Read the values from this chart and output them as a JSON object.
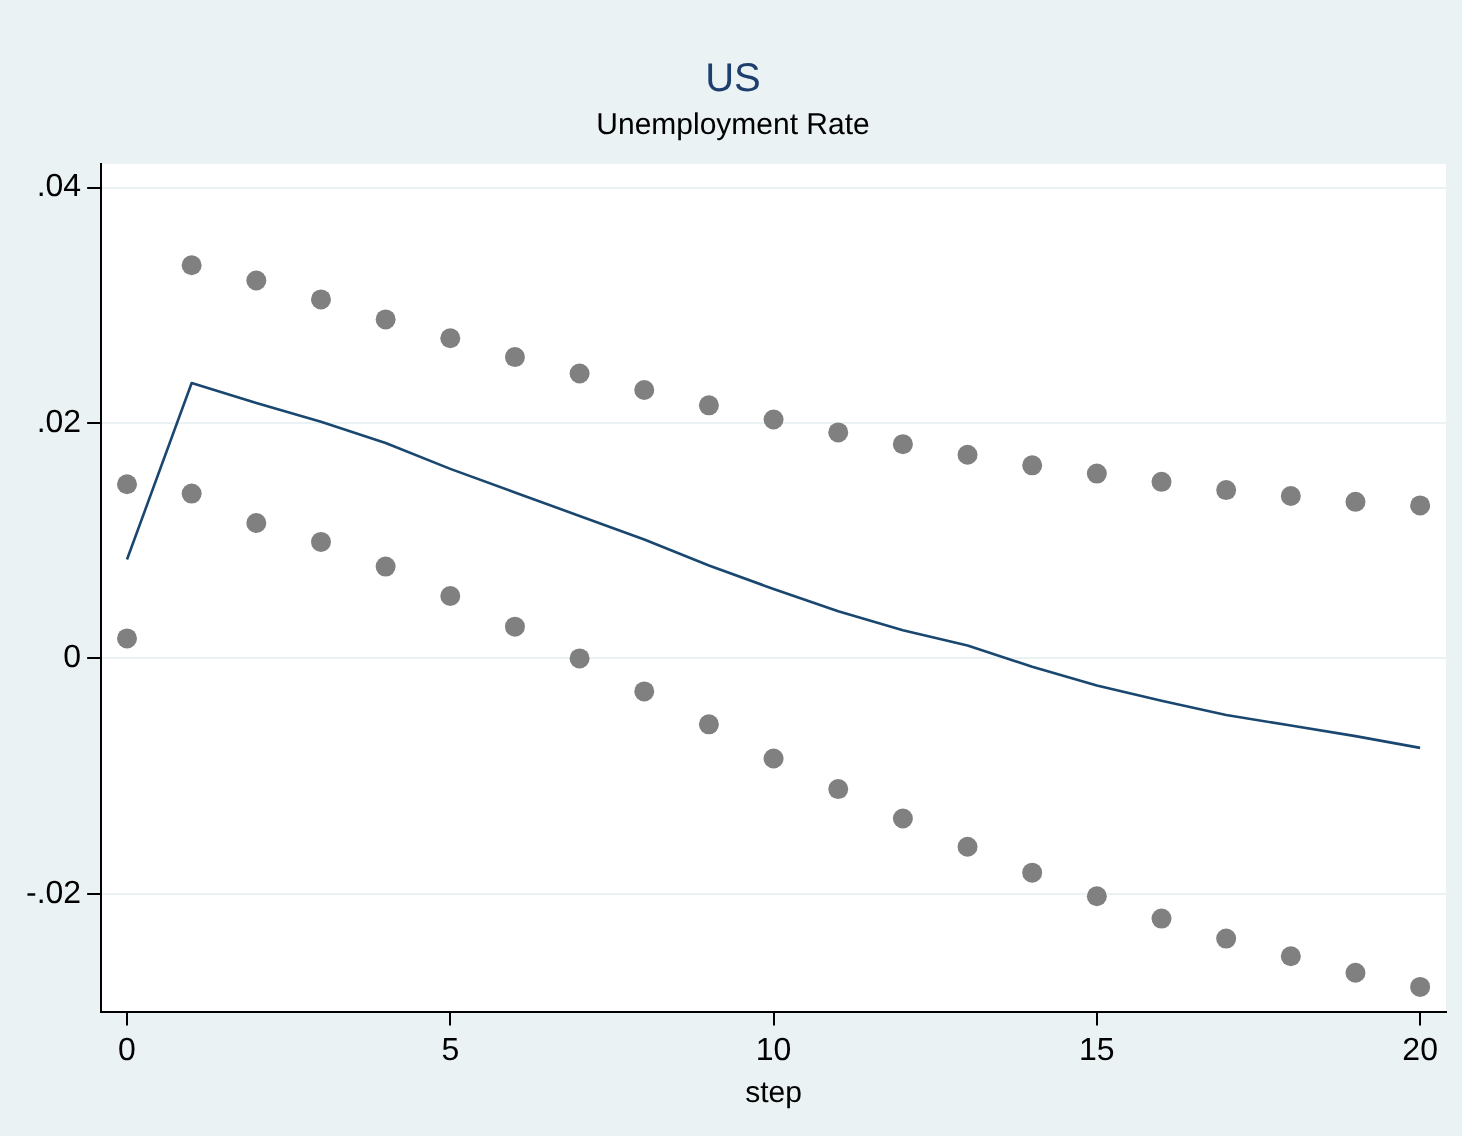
{
  "chart_data": {
    "type": "line",
    "title": "US",
    "subtitle": "Unemployment Rate",
    "xlabel": "step",
    "x": [
      0,
      1,
      2,
      3,
      4,
      5,
      6,
      7,
      8,
      9,
      10,
      11,
      12,
      13,
      14,
      15,
      16,
      17,
      18,
      19,
      20
    ],
    "series": [
      {
        "color": "#1a476f",
        "marker": "none",
        "values": [
          0.0084,
          0.0234,
          0.0217,
          0.0201,
          0.0183,
          0.0161,
          0.0141,
          0.0121,
          0.0101,
          0.0079,
          0.0059,
          0.004,
          0.0024,
          0.0011,
          -0.0007,
          -0.0023,
          -0.0036,
          -0.0048,
          -0.0057,
          -0.0066,
          -0.0076
        ]
      },
      {
        "type": "scatter",
        "color": "#808080",
        "marker": "circle",
        "values": [
          0.0148,
          0.0334,
          0.0321,
          0.0305,
          0.0288,
          0.0272,
          0.0256,
          0.0242,
          0.0228,
          0.0215,
          0.0203,
          0.0192,
          0.0182,
          0.0173,
          0.0164,
          0.0157,
          0.015,
          0.0143,
          0.0138,
          0.0133,
          0.013
        ]
      },
      {
        "type": "scatter",
        "color": "#808080",
        "marker": "circle",
        "values": [
          0.0017,
          0.014,
          0.0115,
          0.0099,
          0.0078,
          0.0053,
          0.0027,
          0.0,
          -0.0028,
          -0.0056,
          -0.0085,
          -0.0111,
          -0.0136,
          -0.016,
          -0.0182,
          -0.0202,
          -0.0221,
          -0.0238,
          -0.0253,
          -0.0267,
          -0.0279
        ]
      }
    ],
    "xlim": [
      -0.4,
      20.4
    ],
    "xticks": [
      0,
      5,
      10,
      15,
      20
    ],
    "ylim": [
      -0.03,
      0.042
    ],
    "yticks": [
      {
        "value": -0.02,
        "label": "-.02"
      },
      {
        "value": 0,
        "label": "0"
      },
      {
        "value": 0.02,
        "label": ".02"
      },
      {
        "value": 0.04,
        "label": ".04"
      }
    ],
    "grid": "y",
    "legend": false
  }
}
